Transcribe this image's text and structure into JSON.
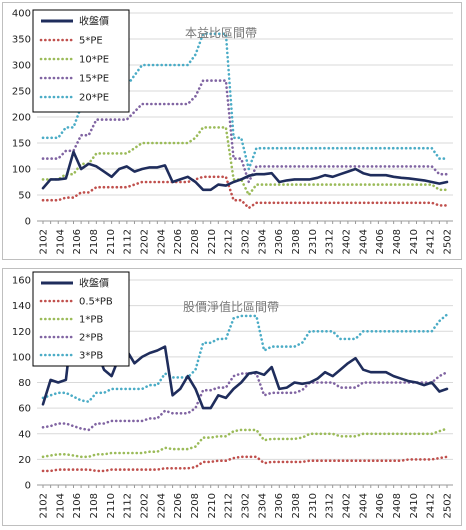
{
  "chart_data": [
    {
      "type": "line",
      "title": "本益比區間帶",
      "xlabel": "",
      "ylabel": "",
      "ylim": [
        0,
        400
      ],
      "yticks": [
        0,
        50,
        100,
        150,
        200,
        250,
        300,
        350,
        400
      ],
      "x_tick_labels": [
        "2102",
        "2104",
        "2106",
        "2108",
        "2110",
        "2112",
        "2202",
        "2204",
        "2206",
        "2208",
        "2210",
        "2212",
        "2302",
        "2304",
        "2306",
        "2308",
        "2310",
        "2312",
        "2402",
        "2404",
        "2406",
        "2408",
        "2410",
        "2412",
        "2502"
      ],
      "grid": "horizontal",
      "legend": "top-left",
      "series": [
        {
          "name": "收盤價",
          "color": "#1f2d5c",
          "dash": "solid",
          "values": [
            63,
            80,
            80,
            82,
            133,
            100,
            110,
            105,
            95,
            85,
            100,
            105,
            95,
            100,
            103,
            103,
            107,
            75,
            80,
            85,
            75,
            60,
            60,
            70,
            68,
            75,
            80,
            87,
            90,
            90,
            92,
            75,
            78,
            80,
            80,
            80,
            83,
            88,
            85,
            90,
            95,
            100,
            92,
            88,
            88,
            88,
            85,
            83,
            82,
            80,
            78,
            75,
            72,
            75
          ]
        },
        {
          "name": "5*PE",
          "color": "#c0504d",
          "dash": "dot",
          "values": [
            40,
            40,
            40,
            45,
            45,
            55,
            55,
            65,
            65,
            65,
            65,
            65,
            70,
            75,
            75,
            75,
            75,
            75,
            75,
            75,
            80,
            85,
            85,
            85,
            85,
            40,
            40,
            25,
            35,
            35,
            35,
            35,
            35,
            35,
            35,
            35,
            35,
            35,
            35,
            35,
            35,
            35,
            35,
            35,
            35,
            35,
            35,
            35,
            35,
            35,
            35,
            35,
            30,
            30
          ]
        },
        {
          "name": "10*PE",
          "color": "#9bbb59",
          "dash": "dot",
          "values": [
            80,
            80,
            80,
            90,
            90,
            110,
            110,
            130,
            130,
            130,
            130,
            130,
            140,
            150,
            150,
            150,
            150,
            150,
            150,
            150,
            160,
            180,
            180,
            180,
            180,
            80,
            80,
            50,
            70,
            70,
            70,
            70,
            70,
            70,
            70,
            70,
            70,
            70,
            70,
            70,
            70,
            70,
            70,
            70,
            70,
            70,
            70,
            70,
            70,
            70,
            70,
            70,
            60,
            60
          ]
        },
        {
          "name": "15*PE",
          "color": "#8064a2",
          "dash": "dot",
          "values": [
            120,
            120,
            120,
            135,
            135,
            165,
            165,
            195,
            195,
            195,
            195,
            195,
            210,
            225,
            225,
            225,
            225,
            225,
            225,
            225,
            240,
            270,
            270,
            270,
            270,
            120,
            120,
            75,
            105,
            105,
            105,
            105,
            105,
            105,
            105,
            105,
            105,
            105,
            105,
            105,
            105,
            105,
            105,
            105,
            105,
            105,
            105,
            105,
            105,
            105,
            105,
            105,
            90,
            90
          ]
        },
        {
          "name": "20*PE",
          "color": "#4bacc6",
          "dash": "dot",
          "values": [
            160,
            160,
            160,
            180,
            180,
            220,
            220,
            260,
            260,
            260,
            260,
            260,
            280,
            300,
            300,
            300,
            300,
            300,
            300,
            300,
            320,
            360,
            360,
            360,
            360,
            160,
            160,
            100,
            140,
            140,
            140,
            140,
            140,
            140,
            140,
            140,
            140,
            140,
            140,
            140,
            140,
            140,
            140,
            140,
            140,
            140,
            140,
            140,
            140,
            140,
            140,
            140,
            120,
            120
          ]
        }
      ]
    },
    {
      "type": "line",
      "title": "股價淨值比區間帶",
      "xlabel": "",
      "ylabel": "",
      "ylim": [
        0,
        160
      ],
      "yticks": [
        0,
        20,
        40,
        60,
        80,
        100,
        120,
        140,
        160
      ],
      "x_tick_labels": [
        "2102",
        "2104",
        "2106",
        "2108",
        "2110",
        "2112",
        "2202",
        "2204",
        "2206",
        "2208",
        "2210",
        "2212",
        "2302",
        "2304",
        "2306",
        "2308",
        "2310",
        "2312",
        "2402",
        "2404",
        "2406",
        "2408",
        "2410",
        "2412",
        "2502"
      ],
      "grid": "horizontal",
      "legend": "top-left",
      "series": [
        {
          "name": "收盤價",
          "color": "#1f2d5c",
          "dash": "solid",
          "values": [
            63,
            82,
            80,
            82,
            133,
            100,
            110,
            105,
            90,
            85,
            100,
            105,
            95,
            100,
            103,
            105,
            108,
            70,
            75,
            85,
            75,
            60,
            60,
            70,
            68,
            75,
            80,
            87,
            88,
            86,
            92,
            75,
            76,
            80,
            79,
            80,
            83,
            88,
            85,
            90,
            95,
            99,
            90,
            88,
            88,
            88,
            85,
            83,
            81,
            80,
            78,
            80,
            73,
            75
          ]
        },
        {
          "name": "0.5*PB",
          "color": "#c0504d",
          "dash": "dot",
          "values": [
            11,
            11,
            12,
            12,
            12,
            12,
            12,
            11,
            11,
            12,
            12,
            12,
            12,
            12,
            12,
            12,
            13,
            13,
            13,
            13,
            14,
            18,
            18,
            19,
            19,
            21,
            22,
            22,
            22,
            17,
            18,
            18,
            18,
            18,
            18,
            19,
            19,
            19,
            19,
            19,
            19,
            19,
            19,
            19,
            19,
            19,
            19,
            19,
            20,
            20,
            20,
            20,
            21,
            22
          ]
        },
        {
          "name": "1*PB",
          "color": "#9bbb59",
          "dash": "dot",
          "values": [
            22,
            23,
            24,
            24,
            23,
            22,
            22,
            24,
            24,
            25,
            25,
            25,
            25,
            25,
            26,
            26,
            29,
            28,
            28,
            28,
            30,
            37,
            37,
            38,
            38,
            42,
            43,
            43,
            43,
            35,
            36,
            36,
            36,
            36,
            37,
            40,
            40,
            40,
            40,
            38,
            38,
            38,
            40,
            40,
            40,
            40,
            40,
            40,
            40,
            40,
            40,
            40,
            42,
            44
          ]
        },
        {
          "name": "2*PB",
          "color": "#8064a2",
          "dash": "dot",
          "values": [
            45,
            46,
            48,
            48,
            46,
            44,
            43,
            48,
            48,
            50,
            50,
            50,
            50,
            50,
            52,
            52,
            58,
            56,
            56,
            56,
            60,
            74,
            74,
            76,
            76,
            85,
            87,
            87,
            87,
            70,
            72,
            72,
            72,
            72,
            74,
            80,
            80,
            80,
            80,
            76,
            76,
            76,
            80,
            80,
            80,
            80,
            80,
            80,
            80,
            80,
            80,
            80,
            85,
            88
          ]
        },
        {
          "name": "3*PB",
          "color": "#4bacc6",
          "dash": "dot",
          "values": [
            68,
            70,
            72,
            72,
            69,
            66,
            65,
            72,
            72,
            75,
            75,
            75,
            75,
            75,
            78,
            78,
            87,
            84,
            84,
            84,
            90,
            111,
            111,
            114,
            114,
            130,
            132,
            132,
            132,
            105,
            108,
            108,
            108,
            108,
            111,
            120,
            120,
            120,
            120,
            114,
            114,
            114,
            120,
            120,
            120,
            120,
            120,
            120,
            120,
            120,
            120,
            120,
            128,
            133
          ]
        }
      ]
    }
  ]
}
